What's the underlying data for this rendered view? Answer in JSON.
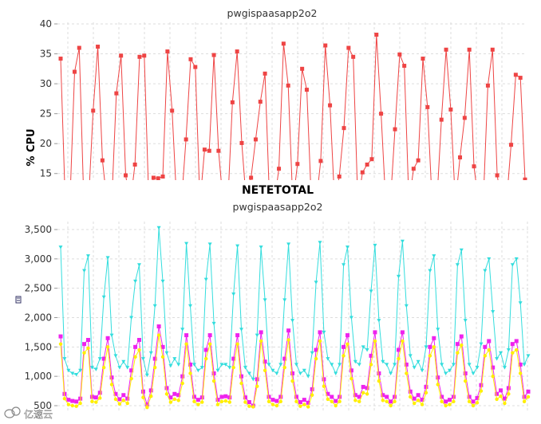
{
  "chart_data": [
    {
      "type": "line",
      "title": "",
      "subtitle": "pwgispaasapp2o2",
      "xlabel": "",
      "ylabel": "% CPU",
      "ylim": [
        13.9,
        40
      ],
      "yticks": [
        15,
        20,
        25,
        30,
        35,
        40
      ],
      "grid": true,
      "series": [
        {
          "color": "#ee4444",
          "marker": "square",
          "values": [
            34.2,
            10,
            10,
            32.0,
            36.0,
            10,
            10,
            25.5,
            36.2,
            17.2,
            10,
            10,
            28.4,
            34.7,
            14.7,
            10,
            16.5,
            34.5,
            34.7,
            10,
            14.3,
            14.2,
            14.5,
            35.4,
            25.5,
            10,
            10,
            20.7,
            34.1,
            32.8,
            10,
            19.0,
            18.8,
            34.8,
            18.8,
            10,
            10,
            26.9,
            35.4,
            20.1,
            10,
            14.3,
            20.7,
            27.0,
            31.7,
            10,
            10,
            15.8,
            36.7,
            29.7,
            10,
            16.6,
            32.5,
            29.0,
            10,
            10,
            17.1,
            36.4,
            26.4,
            10,
            14.5,
            22.6,
            36.0,
            34.5,
            10,
            15.2,
            16.5,
            17.4,
            38.2,
            25.0,
            10,
            10,
            22.4,
            34.9,
            33.0,
            10,
            15.8,
            17.2,
            34.2,
            26.1,
            10,
            10,
            24.0,
            35.7,
            25.7,
            10,
            17.7,
            24.3,
            35.7,
            16.2,
            10,
            10,
            29.7,
            35.7,
            14.7,
            10,
            10,
            19.8,
            31.5,
            31.0,
            14.0
          ]
        }
      ]
    },
    {
      "type": "line",
      "title": "NETETOTAL",
      "subtitle": "pwgispaasapp2o2",
      "xlabel": "",
      "ylabel": "",
      "ylim": [
        470,
        3600
      ],
      "yticks": [
        500,
        1000,
        1500,
        2000,
        2500,
        3000,
        3500
      ],
      "ytick_labels": [
        "500",
        "1,000",
        "1,500",
        "2,000",
        "2,500",
        "3,000",
        "3,500"
      ],
      "grid": true,
      "series": [
        {
          "color": "#33dddd",
          "marker": "triangle-down",
          "values": [
            3200,
            1300,
            1100,
            1050,
            1030,
            1100,
            2800,
            3050,
            1150,
            1120,
            1300,
            2350,
            3020,
            1700,
            1350,
            1150,
            1250,
            1150,
            2000,
            2620,
            2900,
            1300,
            1020,
            1400,
            2200,
            3530,
            2620,
            1400,
            1180,
            1300,
            1200,
            1800,
            3260,
            2200,
            1200,
            1100,
            1150,
            2650,
            3250,
            1900,
            1100,
            1200,
            1200,
            1150,
            2400,
            3220,
            1800,
            1150,
            1050,
            950,
            1700,
            3200,
            2300,
            1200,
            1100,
            1050,
            1200,
            2300,
            3250,
            1950,
            1200,
            1050,
            1100,
            1000,
            1400,
            2600,
            3280,
            1750,
            1300,
            1200,
            1050,
            1200,
            2900,
            3200,
            2000,
            1250,
            1200,
            1500,
            1450,
            2450,
            3230,
            1950,
            1250,
            1200,
            1050,
            1200,
            2700,
            3300,
            2200,
            1350,
            1150,
            1250,
            1100,
            1500,
            2800,
            3050,
            1800,
            1200,
            1050,
            1100,
            1200,
            2900,
            3150,
            1950,
            1200,
            1050,
            1150,
            1550,
            2800,
            3000,
            2100,
            1300,
            1400,
            1150,
            1450,
            2900,
            3000,
            2250,
            1200,
            1350
          ],
          "note": ""
        },
        {
          "color": "#ee22ee",
          "marker": "square",
          "values": [
            1680,
            700,
            600,
            580,
            570,
            620,
            1550,
            1620,
            650,
            640,
            720,
            1300,
            1650,
            980,
            700,
            610,
            680,
            620,
            1100,
            1500,
            1620,
            740,
            520,
            760,
            1300,
            1850,
            1500,
            800,
            640,
            700,
            680,
            1000,
            1700,
            1200,
            650,
            600,
            640,
            1450,
            1700,
            1050,
            600,
            650,
            660,
            640,
            1300,
            1700,
            1000,
            640,
            560,
            500,
            950,
            1750,
            1250,
            650,
            600,
            580,
            650,
            1300,
            1780,
            1050,
            650,
            560,
            600,
            550,
            780,
            1450,
            1750,
            950,
            700,
            650,
            580,
            650,
            1500,
            1700,
            1100,
            680,
            650,
            820,
            800,
            1350,
            1750,
            1050,
            680,
            650,
            570,
            650,
            1450,
            1750,
            1200,
            740,
            620,
            680,
            600,
            820,
            1500,
            1650,
            980,
            650,
            570,
            600,
            650,
            1550,
            1680,
            1050,
            650,
            570,
            630,
            850,
            1500,
            1600,
            1150,
            700,
            760,
            620,
            800,
            1550,
            1600,
            1200,
            650,
            740
          ]
        },
        {
          "color": "#ffee00",
          "marker": "circle",
          "values": [
            1550,
            620,
            520,
            500,
            490,
            540,
            1400,
            1480,
            570,
            560,
            630,
            1150,
            1500,
            860,
            610,
            530,
            590,
            540,
            960,
            1330,
            1450,
            640,
            470,
            660,
            1150,
            1700,
            1330,
            700,
            560,
            610,
            590,
            880,
            1550,
            1050,
            570,
            520,
            560,
            1300,
            1550,
            920,
            520,
            570,
            580,
            560,
            1150,
            1550,
            880,
            560,
            490,
            480,
            830,
            1600,
            1100,
            570,
            520,
            500,
            570,
            1150,
            1620,
            920,
            570,
            490,
            520,
            480,
            680,
            1300,
            1600,
            830,
            610,
            570,
            500,
            570,
            1350,
            1550,
            960,
            590,
            570,
            720,
            700,
            1200,
            1600,
            920,
            590,
            570,
            500,
            570,
            1300,
            1600,
            1050,
            650,
            540,
            590,
            520,
            720,
            1350,
            1500,
            860,
            570,
            500,
            520,
            570,
            1400,
            1530,
            920,
            570,
            500,
            550,
            750,
            1350,
            1450,
            1000,
            610,
            660,
            540,
            700,
            1400,
            1450,
            1050,
            570,
            650
          ]
        }
      ]
    }
  ],
  "watermark": {
    "text": "亿速云",
    "icon": "cloud-logo-icon"
  },
  "legend_icon": "legend-box-icon"
}
